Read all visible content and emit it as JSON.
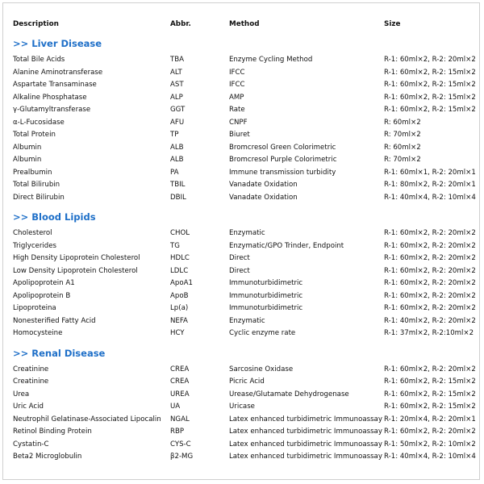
{
  "header": {
    "columns": [
      "Description",
      "Abbr.",
      "Method",
      "Size"
    ]
  },
  "sections": [
    {
      "title": ">> Liver Disease",
      "rows": [
        [
          "Total Bile Acids",
          "TBA",
          "Enzyme Cycling Method",
          "R-1: 60ml×2, R-2: 20ml×2"
        ],
        [
          "Alanine Aminotransferase",
          "ALT",
          "IFCC",
          "R-1: 60ml×2, R-2: 15ml×2"
        ],
        [
          "Aspartate Transaminase",
          "AST",
          "IFCC",
          "R-1: 60ml×2, R-2: 15ml×2"
        ],
        [
          "Alkaline Phosphatase",
          "ALP",
          "AMP",
          "R-1: 60ml×2, R-2: 15ml×2"
        ],
        [
          "γ-Glutamyltransferase",
          "GGT",
          "Rate",
          "R-1: 60ml×2, R-2: 15ml×2"
        ],
        [
          "α-L-Fucosidase",
          "AFU",
          "CNPF",
          "R: 60ml×2"
        ],
        [
          "Total Protein",
          "TP",
          "Biuret",
          "R: 70ml×2"
        ],
        [
          "Albumin",
          "ALB",
          "Bromcresol Green Colorimetric",
          "R: 60ml×2"
        ],
        [
          "Albumin",
          "ALB",
          "Bromcresol Purple Colorimetric",
          "R: 70ml×2"
        ],
        [
          "Prealbumin",
          "PA",
          "Immune transmission turbidity",
          "R-1: 60ml×1, R-2: 20ml×1"
        ],
        [
          "Total Bilirubin",
          "TBIL",
          "Vanadate Oxidation",
          "R-1: 80ml×2, R-2: 20ml×1"
        ],
        [
          "Direct Bilirubin",
          "DBIL",
          "Vanadate Oxidation",
          "R-1: 40ml×4, R-2: 10ml×4"
        ]
      ]
    },
    {
      "title": ">> Blood Lipids",
      "rows": [
        [
          "Cholesterol",
          "CHOL",
          "Enzymatic",
          "R-1: 60ml×2, R-2: 20ml×2"
        ],
        [
          "Triglycerides",
          "TG",
          "Enzymatic/GPO Trinder, Endpoint",
          "R-1: 60ml×2, R-2: 20ml×2"
        ],
        [
          "High Density Lipoprotein Cholesterol",
          "HDLC",
          "Direct",
          "R-1: 60ml×2, R-2: 20ml×2"
        ],
        [
          "Low Density Lipoprotein Cholesterol",
          "LDLC",
          "Direct",
          "R-1: 60ml×2, R-2: 20ml×2"
        ],
        [
          "Apolipoprotein A1",
          "ApoA1",
          "Immunoturbidimetric",
          "R-1: 60ml×2, R-2: 20ml×2"
        ],
        [
          "Apolipoprotein B",
          "ApoB",
          "Immunoturbidimetric",
          "R-1: 60ml×2, R-2: 20ml×2"
        ],
        [
          "Lipoproteina",
          "Lp(a)",
          "Immunoturbidimetric",
          "R-1: 60ml×2, R-2: 20ml×2"
        ],
        [
          "Nonesterified Fatty Acid",
          "NEFA",
          "Enzymatic",
          "R-1: 40ml×2, R-2: 20ml×2"
        ],
        [
          "Homocysteine",
          "HCY",
          "Cyclic enzyme rate",
          "R-1: 37ml×2, R-2:10ml×2"
        ]
      ]
    },
    {
      "title": ">> Renal Disease",
      "rows": [
        [
          "Creatinine",
          "CREA",
          "Sarcosine Oxidase",
          "R-1: 60ml×2, R-2: 20ml×2"
        ],
        [
          "Creatinine",
          "CREA",
          "Picric Acid",
          "R-1: 60ml×2, R-2: 15ml×2"
        ],
        [
          "Urea",
          "UREA",
          "Urease/Glutamate Dehydrogenase",
          "R-1: 60ml×2, R-2: 15ml×2"
        ],
        [
          "Uric Acid",
          "UA",
          "Uricase",
          "R-1: 60ml×2, R-2: 15ml×2"
        ],
        [
          "Neutrophil Gelatinase-Associated Lipocalin",
          "NGAL",
          "Latex enhanced turbidimetric Immunoassay",
          "R-1: 20ml×4, R-2: 20ml×1"
        ],
        [
          "Retinol Binding Protein",
          "RBP",
          "Latex enhanced turbidimetric Immunoassay",
          "R-1: 60ml×2, R-2: 20ml×2"
        ],
        [
          "Cystatin-C",
          "CYS-C",
          "Latex enhanced turbidimetric Immunoassay",
          "R-1: 50ml×2, R-2: 10ml×2"
        ],
        [
          "Beta2 Microglobulin",
          "β2-MG",
          "Latex enhanced turbidimetric Immunoassay",
          "R-1: 40ml×4, R-2: 10ml×4"
        ]
      ]
    }
  ]
}
